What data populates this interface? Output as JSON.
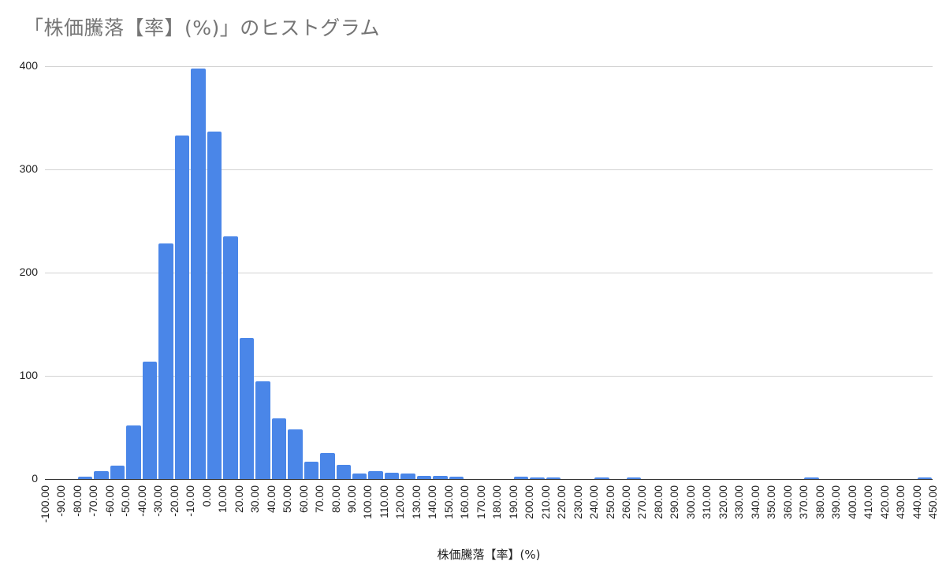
{
  "colors": {
    "bar": "#4a86e8",
    "grid": "#d3d3d3",
    "title": "#757575"
  },
  "chart_data": {
    "type": "bar",
    "title": "「株価騰落【率】(%)」のヒストグラム",
    "xlabel": "株価騰落【率】(%)",
    "ylabel": "",
    "ylim": [
      0,
      400
    ],
    "yticks": [
      "0",
      "100",
      "200",
      "300",
      "400"
    ],
    "grid": true,
    "legend": "none",
    "bin_width": 10,
    "x_tick_labels": [
      "-100.00",
      "-90.00",
      "-80.00",
      "-70.00",
      "-60.00",
      "-50.00",
      "-40.00",
      "-30.00",
      "-20.00",
      "-10.00",
      "0.00",
      "10.00",
      "20.00",
      "30.00",
      "40.00",
      "50.00",
      "60.00",
      "70.00",
      "80.00",
      "90.00",
      "100.00",
      "110.00",
      "120.00",
      "130.00",
      "140.00",
      "150.00",
      "160.00",
      "170.00",
      "180.00",
      "190.00",
      "200.00",
      "210.00",
      "220.00",
      "230.00",
      "240.00",
      "250.00",
      "260.00",
      "270.00",
      "280.00",
      "290.00",
      "300.00",
      "310.00",
      "320.00",
      "330.00",
      "340.00",
      "350.00",
      "360.00",
      "370.00",
      "380.00",
      "390.00",
      "400.00",
      "410.00",
      "420.00",
      "430.00",
      "440.00",
      "450.00"
    ],
    "bin_starts": [
      -100,
      -90,
      -80,
      -70,
      -60,
      -50,
      -40,
      -30,
      -20,
      -10,
      0,
      10,
      20,
      30,
      40,
      50,
      60,
      70,
      80,
      90,
      100,
      110,
      120,
      130,
      140,
      150,
      160,
      170,
      180,
      190,
      200,
      210,
      220,
      230,
      240,
      250,
      260,
      270,
      280,
      290,
      300,
      310,
      320,
      330,
      340,
      350,
      360,
      370,
      380,
      390,
      400,
      410,
      420,
      430,
      440
    ],
    "values": [
      0,
      0,
      2,
      8,
      13,
      52,
      114,
      228,
      333,
      398,
      337,
      235,
      137,
      95,
      59,
      48,
      17,
      25,
      14,
      5,
      8,
      6,
      5,
      3,
      3,
      2,
      0,
      0,
      0,
      2,
      1,
      1,
      0,
      0,
      1,
      0,
      1,
      0,
      0,
      0,
      0,
      0,
      0,
      0,
      0,
      0,
      0,
      1,
      0,
      0,
      0,
      0,
      0,
      0,
      1
    ]
  }
}
